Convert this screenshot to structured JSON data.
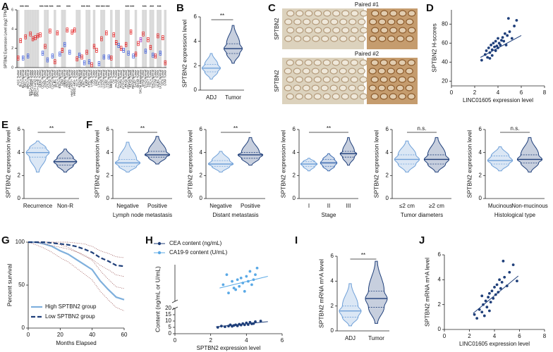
{
  "panel_c": {
    "panel_label": "C",
    "row_labels": [
      "SPTBN2",
      "SPTBN2"
    ],
    "captions": [
      "Paired #1",
      "Paired #2"
    ]
  },
  "chart_data": [
    {
      "type": "box",
      "panel_label": "A",
      "ylabel": "SPTBN2 Expression Level (log2 TPM)",
      "ylim": [
        0,
        6
      ],
      "yticks": [
        0,
        2,
        4,
        6
      ],
      "categories": [
        "ACC Tumor",
        "BLCA Tumor",
        "BLCA Normal",
        "BRCA Tumor",
        "BRCA Normal",
        "BRCA-Basal Tumor",
        "BRCA-Her2 Tumor",
        "BRCA-LumA Tumor",
        "BRCA-LumB Tumor",
        "CESC Tumor",
        "CESC Normal",
        "CHOL Tumor",
        "CHOL Normal",
        "COAD Tumor",
        "COAD Normal",
        "DLBC Tumor",
        "ESCA Tumor",
        "ESCA Normal",
        "GBM Tumor",
        "GBM Normal",
        "HNSC Tumor",
        "HNSC Normal",
        "HNSC-HPV+ Tumor",
        "HNSC-HPV- Tumor",
        "KICH Tumor",
        "KICH Normal",
        "KIRC Tumor",
        "KIRC Normal",
        "KIRP Tumor",
        "KIRP Normal",
        "LAML Tumor",
        "LGG Tumor",
        "LIHC Tumor",
        "LIHC Normal",
        "LUAD Tumor",
        "LUAD Normal",
        "LUSC Tumor",
        "LUSC Normal",
        "MESO Tumor",
        "OV Tumor",
        "PAAD Tumor",
        "PAAD Normal",
        "PCPG Tumor",
        "PCPG Normal",
        "PRAD Tumor",
        "PRAD Normal",
        "READ Tumor",
        "READ Normal",
        "SARC Tumor",
        "SKCM Tumor",
        "SKCM Metastasis",
        "STAD Tumor",
        "STAD Normal",
        "TGCT Tumor",
        "THCA Tumor",
        "THCA Normal",
        "THYM Tumor",
        "UCEC Tumor",
        "UCEC Normal",
        "UCS Tumor",
        "UVM Tumor"
      ],
      "values": [
        1.0,
        2.8,
        1.0,
        3.2,
        1.2,
        3.5,
        3.0,
        3.1,
        3.3,
        3.4,
        1.5,
        2.2,
        0.8,
        3.8,
        1.2,
        0.6,
        3.6,
        1.4,
        1.8,
        2.4,
        3.9,
        1.6,
        3.7,
        3.9,
        0.9,
        1.3,
        1.1,
        0.5,
        1.6,
        0.6,
        0.3,
        2.2,
        1.8,
        0.4,
        3.0,
        1.1,
        3.6,
        1.1,
        1.0,
        3.4,
        2.6,
        2.3,
        2.0,
        1.8,
        2.4,
        1.5,
        3.7,
        1.2,
        1.4,
        2.5,
        2.9,
        3.5,
        1.7,
        2.9,
        2.1,
        1.3,
        1.2,
        3.3,
        1.5,
        3.1,
        0.5
      ],
      "colors": [
        "#e41a1c",
        "#e41a1c",
        "#3b5bdb",
        "#e41a1c",
        "#3b5bdb",
        "#e41a1c",
        "#e41a1c",
        "#e41a1c",
        "#e41a1c",
        "#e41a1c",
        "#3b5bdb",
        "#e41a1c",
        "#3b5bdb",
        "#e41a1c",
        "#3b5bdb",
        "#e41a1c",
        "#e41a1c",
        "#3b5bdb",
        "#e41a1c",
        "#3b5bdb",
        "#e41a1c",
        "#3b5bdb",
        "#e41a1c",
        "#e41a1c",
        "#e41a1c",
        "#3b5bdb",
        "#e41a1c",
        "#3b5bdb",
        "#e41a1c",
        "#3b5bdb",
        "#e41a1c",
        "#e41a1c",
        "#e41a1c",
        "#3b5bdb",
        "#e41a1c",
        "#3b5bdb",
        "#e41a1c",
        "#3b5bdb",
        "#e41a1c",
        "#e41a1c",
        "#e41a1c",
        "#3b5bdb",
        "#e41a1c",
        "#3b5bdb",
        "#e41a1c",
        "#3b5bdb",
        "#e41a1c",
        "#3b5bdb",
        "#e41a1c",
        "#e41a1c",
        "#9b30c8",
        "#e41a1c",
        "#3b5bdb",
        "#e41a1c",
        "#e41a1c",
        "#3b5bdb",
        "#e41a1c",
        "#e41a1c",
        "#3b5bdb",
        "#e41a1c",
        "#e41a1c"
      ],
      "significance": [
        null,
        "***",
        null,
        "***",
        null,
        null,
        null,
        null,
        null,
        "***",
        null,
        "***",
        null,
        "***",
        null,
        null,
        "***",
        null,
        null,
        null,
        "***",
        null,
        null,
        null,
        null,
        null,
        "***",
        null,
        "***",
        null,
        null,
        null,
        "***",
        null,
        "***",
        null,
        "***",
        null,
        null,
        null,
        null,
        null,
        null,
        null,
        "***",
        null,
        "***",
        null,
        null,
        null,
        null,
        "***",
        null,
        null,
        "***",
        null,
        null,
        "***",
        null,
        null,
        null
      ]
    },
    {
      "type": "violin",
      "panel_label": "B",
      "ylabel": "SPTBN2 expression level",
      "ylim": [
        0,
        6
      ],
      "yticks": [
        0,
        2,
        4,
        6
      ],
      "categories": [
        "ADJ",
        "Tumor"
      ],
      "colors": [
        "#6fa0d8",
        "#1f3f7a"
      ],
      "significance": "**",
      "min": [
        0.9,
        2.2
      ],
      "q1": [
        1.5,
        3.0
      ],
      "median": [
        1.8,
        3.4
      ],
      "q3": [
        2.1,
        3.8
      ],
      "max": [
        3.0,
        5.3
      ]
    },
    {
      "type": "scatter",
      "panel_label": "D",
      "xlabel": "LINC01605 expression level",
      "ylabel": "SPTBN2 H-scores",
      "xlim": [
        0,
        8
      ],
      "xticks": [
        0,
        2,
        4,
        6,
        8
      ],
      "ylim": [
        15,
        95
      ],
      "yticks": [
        20,
        40,
        60,
        80
      ],
      "series": [
        {
          "color": "#1f3f7a",
          "x": [
            2.6,
            2.9,
            3.0,
            3.1,
            3.2,
            3.3,
            3.4,
            3.5,
            3.5,
            3.6,
            3.7,
            3.8,
            3.8,
            3.9,
            4.0,
            4.0,
            4.1,
            4.2,
            4.3,
            4.4,
            4.5,
            4.6,
            4.7,
            4.8,
            5.0,
            5.2,
            5.4,
            5.6,
            3.3,
            4.9
          ],
          "y": [
            42,
            48,
            52,
            45,
            55,
            50,
            58,
            53,
            47,
            60,
            56,
            52,
            62,
            57,
            55,
            65,
            60,
            58,
            63,
            66,
            62,
            70,
            58,
            68,
            72,
            65,
            78,
            84,
            44,
            86
          ],
          "trend": {
            "x": [
              2.5,
              6.0
            ],
            "y": [
              45,
              68
            ]
          }
        }
      ]
    },
    {
      "type": "violin",
      "panel_label": "E",
      "ylabel": "SPTBN2 expression level",
      "ylim": [
        0,
        6
      ],
      "yticks": [
        0,
        2,
        4,
        6
      ],
      "categories": [
        "Recurrence",
        "Non-R"
      ],
      "colors": [
        "#6fa0d8",
        "#1f3f7a"
      ],
      "significance": "**",
      "min": [
        2.3,
        2.3
      ],
      "q1": [
        3.6,
        2.9
      ],
      "median": [
        4.0,
        3.2
      ],
      "q3": [
        4.4,
        3.5
      ],
      "max": [
        5.0,
        4.3
      ]
    },
    {
      "type": "violin",
      "panel_label": "F",
      "ylabel": "SPTBN2 expression level",
      "xlabel": "Lymph node metastasis",
      "ylim": [
        0,
        6
      ],
      "yticks": [
        0,
        2,
        4,
        6
      ],
      "categories": [
        "Negative",
        "Positive"
      ],
      "colors": [
        "#6fa0d8",
        "#1f3f7a"
      ],
      "significance": "**",
      "min": [
        2.3,
        3.0
      ],
      "q1": [
        2.8,
        3.6
      ],
      "median": [
        3.1,
        3.8
      ],
      "q3": [
        3.4,
        4.1
      ],
      "max": [
        4.9,
        5.4
      ]
    },
    {
      "type": "violin",
      "ylabel": "SPTBN2 expression level",
      "xlabel": "Distant metastasis",
      "ylim": [
        0,
        6
      ],
      "yticks": [
        0,
        2,
        4,
        6
      ],
      "categories": [
        "Negative",
        "Positive"
      ],
      "colors": [
        "#6fa0d8",
        "#1f3f7a"
      ],
      "significance": "**",
      "min": [
        2.3,
        2.9
      ],
      "q1": [
        2.8,
        3.5
      ],
      "median": [
        3.0,
        3.8
      ],
      "q3": [
        3.3,
        4.0
      ],
      "max": [
        4.1,
        5.3
      ]
    },
    {
      "type": "violin",
      "ylabel": "SPTBN2 expression level",
      "xlabel": "Stage",
      "ylim": [
        0,
        6
      ],
      "yticks": [
        0,
        2,
        4,
        6
      ],
      "categories": [
        "I",
        "II",
        "III"
      ],
      "colors": [
        "#6fa0d8",
        "#3d6bb0",
        "#1f3f7a"
      ],
      "significance": "**",
      "min": [
        2.4,
        2.4,
        2.9
      ],
      "q1": [
        2.8,
        2.8,
        3.6
      ],
      "median": [
        3.0,
        3.1,
        3.9
      ],
      "q3": [
        3.2,
        3.4,
        4.1
      ],
      "max": [
        3.5,
        3.9,
        5.3
      ]
    },
    {
      "type": "violin",
      "ylabel": "SPTBN2 expression level",
      "xlabel": "Tumor diameters",
      "ylim": [
        0,
        6
      ],
      "yticks": [
        0,
        2,
        4,
        6
      ],
      "categories": [
        "≤2 cm",
        "≥2 cm"
      ],
      "colors": [
        "#6fa0d8",
        "#1f3f7a"
      ],
      "significance": "n.s.",
      "min": [
        2.3,
        2.3
      ],
      "q1": [
        3.0,
        3.0
      ],
      "median": [
        3.4,
        3.4
      ],
      "q3": [
        3.8,
        3.8
      ],
      "max": [
        5.0,
        5.3
      ]
    },
    {
      "type": "violin",
      "ylabel": "SPTBN2 expression level",
      "xlabel": "Histological type",
      "ylim": [
        0,
        6
      ],
      "yticks": [
        0,
        2,
        4,
        6
      ],
      "categories": [
        "Mucinous",
        "Non-mucinous"
      ],
      "colors": [
        "#6fa0d8",
        "#1f3f7a"
      ],
      "significance": "n.s.",
      "min": [
        2.4,
        2.3
      ],
      "q1": [
        3.0,
        3.1
      ],
      "median": [
        3.3,
        3.4
      ],
      "q3": [
        3.7,
        3.8
      ],
      "max": [
        4.5,
        5.3
      ]
    },
    {
      "type": "line",
      "panel_label": "G",
      "xlabel": "Months Elapsed",
      "ylabel": "Percent survival",
      "xlim": [
        0,
        60
      ],
      "xticks": [
        0,
        20,
        40,
        60
      ],
      "ylim": [
        0,
        100
      ],
      "yticks": [
        0,
        50,
        100
      ],
      "ci_color": "#8b3a3a",
      "x": [
        0,
        5,
        10,
        15,
        20,
        25,
        30,
        35,
        40,
        45,
        50,
        55,
        60
      ],
      "series": [
        {
          "name": "High SPTBN2 group",
          "color": "#7fb0dd",
          "dash": "none",
          "values": [
            100,
            100,
            98,
            95,
            90,
            86,
            80,
            74,
            68,
            55,
            45,
            36,
            33
          ],
          "lower": [
            100,
            97,
            93,
            88,
            82,
            77,
            70,
            63,
            56,
            43,
            33,
            24,
            20
          ],
          "upper": [
            100,
            100,
            100,
            100,
            97,
            94,
            89,
            84,
            79,
            67,
            57,
            48,
            46
          ]
        },
        {
          "name": "Low SPTBN2 group",
          "color": "#1f3f7a",
          "dash": "6 3",
          "values": [
            100,
            100,
            100,
            99,
            98,
            97,
            95,
            92,
            88,
            82,
            78,
            73,
            72
          ],
          "lower": [
            100,
            100,
            98,
            96,
            94,
            92,
            89,
            85,
            80,
            73,
            68,
            62,
            60
          ],
          "upper": [
            100,
            100,
            100,
            100,
            100,
            100,
            99,
            98,
            95,
            90,
            87,
            83,
            82
          ]
        }
      ]
    },
    {
      "type": "scatter",
      "panel_label": "H",
      "xlabel": "SPTBN2 expression level",
      "ylabel": "Content (ng/mL or U/mL)",
      "xlim": [
        0,
        6
      ],
      "xticks": [
        0,
        2,
        4,
        6
      ],
      "ylim": [
        0,
        20
      ],
      "yticks": [
        0,
        5,
        10,
        15,
        20
      ],
      "y2lim": [
        60,
        170
      ],
      "series": [
        {
          "name": "CEA content (ng/mL)",
          "color": "#1f3f7a",
          "x": [
            2.4,
            2.6,
            2.8,
            3.0,
            3.1,
            3.2,
            3.3,
            3.4,
            3.5,
            3.6,
            3.7,
            3.8,
            3.9,
            4.0,
            4.1,
            4.2,
            4.3,
            4.4,
            4.5,
            4.8
          ],
          "y": [
            5,
            6,
            5.5,
            6,
            7,
            5.8,
            6.5,
            7,
            6.2,
            7.5,
            6.8,
            8,
            7,
            8.5,
            7.2,
            9,
            7.8,
            8,
            9.5,
            10
          ],
          "trend": {
            "x": [
              2.3,
              5.2
            ],
            "y": [
              5.5,
              9.5
            ]
          }
        },
        {
          "name": "CA19-9 content (U/mL)",
          "color": "#5aa9e6",
          "axis": "y2",
          "x": [
            2.7,
            2.9,
            3.0,
            3.2,
            3.3,
            3.4,
            3.5,
            3.6,
            3.7,
            3.8,
            3.9,
            4.0,
            4.1,
            4.2,
            4.3,
            4.4,
            4.5,
            4.6
          ],
          "y": [
            110,
            140,
            85,
            120,
            100,
            95,
            125,
            105,
            130,
            115,
            90,
            135,
            120,
            150,
            110,
            125,
            140,
            160
          ],
          "trend": {
            "x": [
              2.5,
              5.2
            ],
            "y": [
              100,
              135
            ]
          }
        }
      ]
    },
    {
      "type": "violin",
      "panel_label": "I",
      "ylabel": "SPTBN2 mRNA m⁶A level",
      "ylim": [
        0,
        6
      ],
      "yticks": [
        0,
        2,
        4,
        6
      ],
      "categories": [
        "ADJ",
        "Tumor"
      ],
      "colors": [
        "#6fa0d8",
        "#1f3f7a"
      ],
      "significance": "**",
      "min": [
        0.4,
        0.6
      ],
      "q1": [
        1.1,
        1.9
      ],
      "median": [
        1.6,
        2.6
      ],
      "q3": [
        2.0,
        3.2
      ],
      "max": [
        3.8,
        5.6
      ]
    },
    {
      "type": "scatter",
      "panel_label": "J",
      "xlabel": "LINC01605 expression level",
      "ylabel": "SPTBN2 mRNA m⁶A level",
      "xlim": [
        0,
        8
      ],
      "xticks": [
        0,
        2,
        4,
        6,
        8
      ],
      "ylim": [
        0,
        6
      ],
      "yticks": [
        0,
        2,
        4,
        6
      ],
      "series": [
        {
          "color": "#1f3f7a",
          "x": [
            2.4,
            2.6,
            2.8,
            3.0,
            3.1,
            3.2,
            3.3,
            3.4,
            3.5,
            3.6,
            3.6,
            3.7,
            3.8,
            3.9,
            4.0,
            4.1,
            4.2,
            4.3,
            4.4,
            4.5,
            4.6,
            4.8,
            5.0,
            5.2,
            5.5,
            5.8,
            3.0,
            4.7
          ],
          "y": [
            1.2,
            0.9,
            1.6,
            1.4,
            2.0,
            1.1,
            2.3,
            1.8,
            2.6,
            1.5,
            2.9,
            2.2,
            3.1,
            2.5,
            3.4,
            2.8,
            3.6,
            3.0,
            4.0,
            3.3,
            3.8,
            4.2,
            3.5,
            4.6,
            5.2,
            3.9,
            2.7,
            5.5
          ],
          "trend": {
            "x": [
              2.3,
              5.9
            ],
            "y": [
              1.3,
              4.3
            ]
          }
        }
      ]
    }
  ]
}
